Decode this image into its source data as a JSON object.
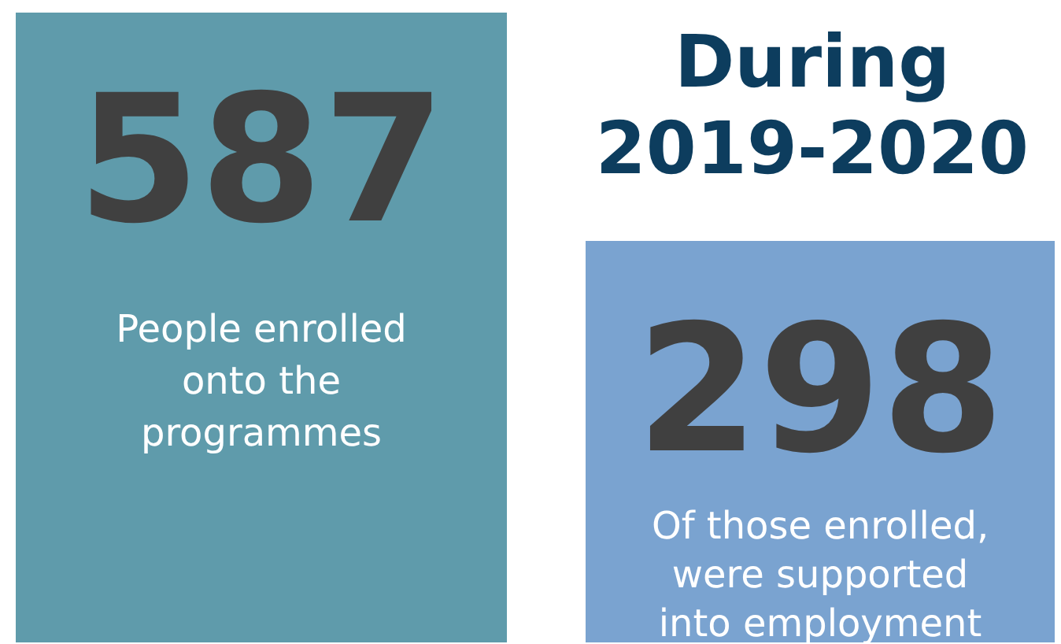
{
  "chart_data": {
    "type": "other",
    "title": "During 2019-2020",
    "categories": [
      "People enrolled onto the programmes",
      "Of those enrolled, were supported into employment"
    ],
    "values": [
      587,
      298
    ],
    "colors": [
      "#5f9bab",
      "#7aa3d0"
    ],
    "data_labels": true
  }
}
